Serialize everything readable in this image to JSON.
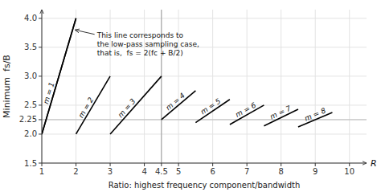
{
  "chart_data": {
    "type": "line",
    "y_label": "Minimum  fs/B",
    "x_label": "Ratio: highest frequency component/bandwidth",
    "xlim": [
      1,
      10.5
    ],
    "ylim": [
      1.5,
      4.15
    ],
    "xticks": [
      1,
      2,
      3,
      4,
      4.5,
      5,
      6,
      7,
      8,
      9,
      10
    ],
    "yticks": [
      1.5,
      {
        "value": 2.0,
        "label": "2.0"
      },
      2.25,
      2.5,
      {
        "value": 3.0,
        "label": "3.0"
      },
      3.5,
      {
        "value": 4.0,
        "label": "4.0"
      }
    ],
    "grid": true,
    "hline": 2.25,
    "vline": 4.5,
    "color": "#000000",
    "series": [
      {
        "x": [
          1.0,
          2.0
        ],
        "values": [
          2.0,
          4.0
        ]
      },
      {
        "name": "m = 1",
        "x": [
          1.0,
          2.0
        ],
        "values": [
          2.0,
          4.0
        ]
      },
      {
        "name": "m = 2",
        "x": [
          2.0,
          3.0
        ],
        "values": [
          2.0,
          3.0
        ]
      },
      {
        "name": "m = 3",
        "x": [
          3.0,
          4.5
        ],
        "values": [
          2.0,
          3.0
        ]
      },
      {
        "name": "m = 4",
        "x": [
          4.5,
          5.5
        ],
        "values": [
          2.25,
          2.75
        ]
      },
      {
        "name": "m = 5",
        "x": [
          5.5,
          6.5
        ],
        "values": [
          2.2,
          2.6
        ]
      },
      {
        "name": "m = 6",
        "x": [
          6.5,
          7.5
        ],
        "values": [
          2.1666666666666665,
          2.5
        ]
      },
      {
        "name": "m = 7",
        "x": [
          7.5,
          8.5
        ],
        "values": [
          2.142857142857143,
          2.4285714285714284
        ]
      },
      {
        "name": "m = 8",
        "x": [
          8.5,
          9.5
        ],
        "values": [
          2.125,
          2.375
        ]
      }
    ],
    "annotations": [
      {
        "text": "This line corresponds to\nthe low-pass sampling case,\nthat is,  fs = 2(fc + B/2)"
      },
      {
        "text": "R"
      }
    ]
  }
}
